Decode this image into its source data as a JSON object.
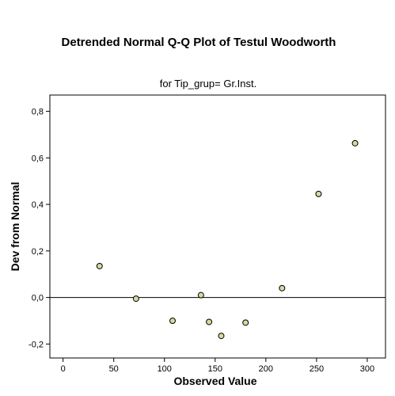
{
  "chart_data": {
    "type": "scatter",
    "title": "Detrended Normal Q-Q Plot of Testul Woodworth",
    "subtitle": "for Tip_grup= Gr.Inst.",
    "xlabel": "Observed Value",
    "ylabel": "Dev from Normal",
    "xlim": [
      -13,
      318
    ],
    "ylim": [
      -0.26,
      0.87
    ],
    "x_ticks": [
      0,
      50,
      100,
      150,
      200,
      250,
      300
    ],
    "x_tick_labels": [
      "0",
      "50",
      "100",
      "150",
      "200",
      "250",
      "300"
    ],
    "y_ticks": [
      -0.2,
      0.0,
      0.2,
      0.4,
      0.6,
      0.8
    ],
    "y_tick_labels": [
      "-0,2",
      "0,0",
      "0,2",
      "0,4",
      "0,6",
      "0,8"
    ],
    "reference_line_y": 0.0,
    "grid": false,
    "points": [
      {
        "x": 36,
        "y": 0.135
      },
      {
        "x": 72,
        "y": -0.005
      },
      {
        "x": 108,
        "y": -0.1
      },
      {
        "x": 136,
        "y": 0.01
      },
      {
        "x": 144,
        "y": -0.105
      },
      {
        "x": 156,
        "y": -0.165
      },
      {
        "x": 180,
        "y": -0.108
      },
      {
        "x": 216,
        "y": 0.04
      },
      {
        "x": 252,
        "y": 0.445
      },
      {
        "x": 288,
        "y": 0.663
      }
    ],
    "colors": {
      "marker_fill": "#d8d8a0",
      "marker_stroke": "#000000",
      "axis": "#000000",
      "background": "#ffffff"
    }
  }
}
